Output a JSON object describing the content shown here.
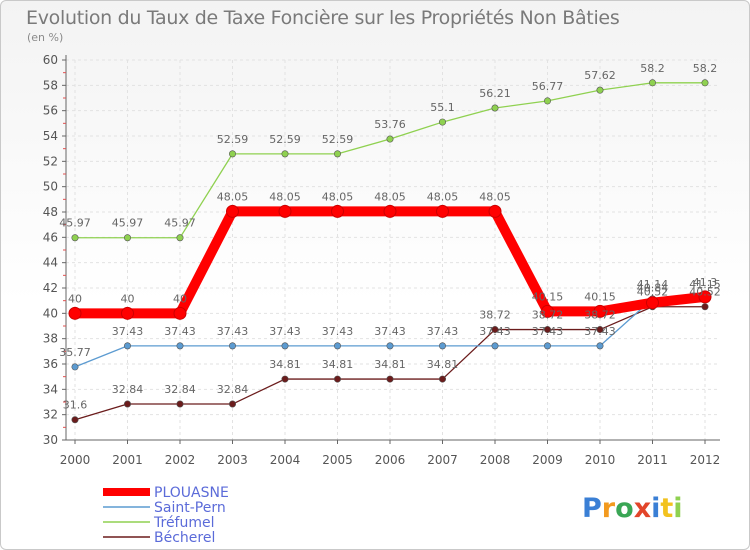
{
  "chart_data": {
    "type": "line",
    "title": "Evolution du Taux de Taxe Foncière sur les Propriétés Non Bâties",
    "subtitle": "(en %)",
    "xlabel": "",
    "ylabel": "",
    "ylim": [
      30,
      60
    ],
    "y_ticks": [
      "30",
      "32",
      "34",
      "36",
      "38",
      "40",
      "42",
      "44",
      "46",
      "48",
      "50",
      "52",
      "54",
      "56",
      "58",
      "60"
    ],
    "categories": [
      "2000",
      "2001",
      "2002",
      "2003",
      "2004",
      "2005",
      "2006",
      "2007",
      "2008",
      "2009",
      "2010",
      "2011",
      "2012"
    ],
    "series": [
      {
        "name": "Béchérel",
        "color": "#6b1c1c",
        "values": [
          31.6,
          32.84,
          32.84,
          32.84,
          34.81,
          34.81,
          34.81,
          34.81,
          38.72,
          38.72,
          38.72,
          40.52,
          40.52
        ],
        "labels": [
          "31.6",
          "32.84",
          "32.84",
          "32.84",
          "34.81",
          "34.81",
          "34.81",
          "34.81",
          "38.72",
          "38.72",
          "38.72",
          "40.52",
          "40.52"
        ]
      },
      {
        "name": "Saint-Pern",
        "color": "#5c9bd1",
        "values": [
          35.77,
          37.43,
          37.43,
          37.43,
          37.43,
          37.43,
          37.43,
          37.43,
          37.43,
          37.43,
          37.43,
          41.14,
          41.15
        ],
        "labels": [
          "35.77",
          "37.43",
          "37.43",
          "37.43",
          "37.43",
          "37.43",
          "37.43",
          "37.43",
          "37.43",
          "37.43",
          "37.43",
          "41.14",
          "41.15"
        ]
      },
      {
        "name": "Tréfumel",
        "color": "#8fd150",
        "values": [
          45.97,
          45.97,
          45.97,
          52.59,
          52.59,
          52.59,
          53.76,
          55.1,
          56.21,
          56.77,
          57.62,
          58.2,
          58.2
        ],
        "labels": [
          "45.97",
          "45.97",
          "45.97",
          "52.59",
          "52.59",
          "52.59",
          "53.76",
          "55.1",
          "56.21",
          "56.77",
          "57.62",
          "58.2",
          "58.2"
        ]
      },
      {
        "name": "PLOUASNE",
        "color": "#ff0000",
        "values": [
          40,
          40,
          40,
          48.05,
          48.05,
          48.05,
          48.05,
          48.05,
          48.05,
          40.15,
          40.15,
          40.84,
          41.3
        ],
        "labels": [
          "40",
          "40",
          "40",
          "48.05",
          "48.05",
          "48.05",
          "48.05",
          "48.05",
          "48.05",
          "40.15",
          "40.15",
          "40.84",
          "41.3"
        ]
      }
    ],
    "legend": [
      {
        "name": "PLOUASNE",
        "color": "#ff0000"
      },
      {
        "name": "Saint-Pern",
        "color": "#5c9bd1"
      },
      {
        "name": "Tréfumel",
        "color": "#8fd150"
      },
      {
        "name": "Bécherel",
        "color": "#6b1c1c"
      }
    ],
    "legend_position": "bottom-left"
  },
  "brand": {
    "letters": [
      "P",
      "r",
      "o",
      "x",
      "i",
      "t",
      "i"
    ],
    "colors": [
      "#3a7fd5",
      "#f29a1f",
      "#3aa655",
      "#e2452a",
      "#3a7fd5",
      "#f2c21f",
      "#8fd150"
    ]
  }
}
